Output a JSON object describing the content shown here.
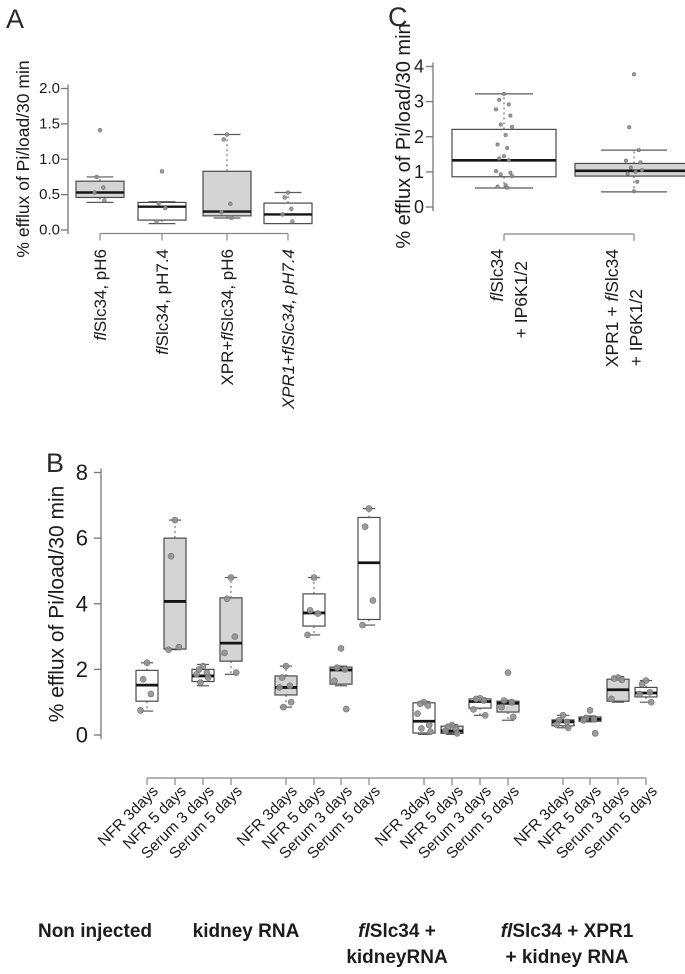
{
  "colors": {
    "box_gray": "#d4d4d4",
    "box_white": "#ffffff",
    "box_border": "#4a4a4a",
    "median": "#141414",
    "whisker": "#5a5a5a",
    "point": "#919191",
    "text": "#1c1c1c"
  },
  "chart_data": [
    {
      "panel": "A",
      "type": "boxplot",
      "ylabel": "% efflux of Pi/load/30 min",
      "ylim": [
        0,
        2
      ],
      "ytick_values": [
        0,
        0.5,
        1,
        1.5,
        2
      ],
      "ytick_labels": [
        "0.0",
        "0.5",
        "1.0",
        "1.5",
        "2.0"
      ],
      "boxes": [
        {
          "label": "flSlc34, pH6",
          "label_parts": [
            [
              "fl",
              1
            ],
            [
              "Slc34, pH6",
              0
            ]
          ],
          "fill": "gray",
          "q1": 0.46,
          "median": 0.53,
          "q3": 0.69,
          "whisker_low": 0.39,
          "whisker_high": 0.75,
          "points": [
            1.41,
            0.75,
            0.6,
            0.53,
            0.42
          ]
        },
        {
          "label": "flSlc34, pH7.4",
          "label_parts": [
            [
              "fl",
              1
            ],
            [
              "Slc34, pH7.4",
              0
            ]
          ],
          "fill": "white",
          "q1": 0.14,
          "median": 0.33,
          "q3": 0.39,
          "whisker_low": 0.09,
          "whisker_high": 0.4,
          "points": [
            0.83,
            0.38,
            0.31,
            0.12
          ]
        },
        {
          "label": "XPR+flSlc34, pH6",
          "label_parts": [
            [
              "XPR+",
              0
            ],
            [
              "fl",
              1
            ],
            [
              "Slc34, pH6",
              0
            ]
          ],
          "fill": "gray",
          "q1": 0.2,
          "median": 0.26,
          "q3": 0.83,
          "whisker_low": 0.17,
          "whisker_high": 1.35,
          "points": [
            1.35,
            1.28,
            0.37,
            0.25,
            0.17
          ]
        },
        {
          "label": "XPR1+flSlc34, pH7.4",
          "label_parts": [
            [
              "XPR1+flSlc34, pH7.4",
              1
            ]
          ],
          "fill": "white",
          "q1": 0.09,
          "median": 0.22,
          "q3": 0.38,
          "whisker_low": 0.09,
          "whisker_high": 0.53,
          "points": [
            0.53,
            0.46,
            0.3,
            0.22,
            0.12
          ]
        }
      ]
    },
    {
      "panel": "C",
      "type": "boxplot",
      "ylabel": "% efflux of Pi/load/30 min",
      "ylim": [
        0,
        4
      ],
      "ytick_values": [
        0,
        1,
        2,
        3,
        4
      ],
      "ytick_labels": [
        "0",
        "1",
        "2",
        "3",
        "4"
      ],
      "boxes": [
        {
          "label": "flSlc34 + IP6K1/2",
          "label_lines": [
            [
              [
                "fl",
                1
              ],
              [
                "Slc34",
                0
              ]
            ],
            [
              [
                "+ IP6K1/2",
                0
              ]
            ]
          ],
          "fill": "white",
          "q1": 0.86,
          "median": 1.33,
          "q3": 2.21,
          "whisker_low": 0.54,
          "whisker_high": 3.22,
          "points": [
            3.22,
            3.05,
            2.92,
            2.78,
            2.6,
            2.35,
            2.28,
            2.05,
            1.78,
            1.68,
            1.45,
            1.38,
            1.33,
            1.02,
            0.97,
            0.93,
            0.88,
            0.62,
            0.58,
            0.55
          ]
        },
        {
          "label": "XPR1 + flSlc34 + IP6K1/2",
          "label_lines": [
            [
              [
                "XPR1 + ",
                0
              ],
              [
                "fl",
                1
              ],
              [
                "Slc34",
                0
              ]
            ],
            [
              [
                "+ IP6K1/2",
                0
              ]
            ]
          ],
          "fill": "gray",
          "q1": 0.88,
          "median": 1.03,
          "q3": 1.24,
          "whisker_low": 0.43,
          "whisker_high": 1.62,
          "points": [
            3.78,
            2.27,
            1.62,
            1.32,
            1.27,
            1.12,
            1.05,
            1.0,
            0.95,
            0.72,
            0.45
          ]
        }
      ]
    },
    {
      "panel": "B",
      "type": "boxplot",
      "ylabel": "% efflux of Pi/load/30 min",
      "ylim": [
        0,
        8
      ],
      "ytick_values": [
        0,
        2,
        4,
        6,
        8
      ],
      "ytick_labels": [
        "0",
        "2",
        "4",
        "6",
        "8"
      ],
      "boxes": [
        {
          "label": "NFR 3days",
          "fill": "white",
          "q1": 1.03,
          "median": 1.52,
          "q3": 1.97,
          "whisker_low": 0.73,
          "whisker_high": 2.2,
          "points": [
            2.2,
            1.7,
            1.25,
            0.75
          ]
        },
        {
          "label": "NFR 5 days",
          "fill": "gray",
          "q1": 2.62,
          "median": 4.07,
          "q3": 6.0,
          "whisker_low": 2.6,
          "whisker_high": 6.55,
          "points": [
            6.55,
            5.45,
            2.68,
            2.6
          ]
        },
        {
          "label": "Serum 3 days",
          "fill": "white",
          "q1": 1.63,
          "median": 1.8,
          "q3": 2.0,
          "whisker_low": 1.5,
          "whisker_high": 2.15,
          "points": [
            2.1,
            2.0,
            1.9,
            1.85,
            1.75,
            1.6
          ]
        },
        {
          "label": "Serum 5 days",
          "fill": "gray",
          "q1": 2.25,
          "median": 2.8,
          "q3": 4.18,
          "whisker_low": 1.85,
          "whisker_high": 4.8,
          "points": [
            4.8,
            4.15,
            3.0,
            2.5,
            1.9
          ]
        },
        {
          "label": "NFR 3days",
          "fill": "gray",
          "q1": 1.22,
          "median": 1.45,
          "q3": 1.8,
          "whisker_low": 0.85,
          "whisker_high": 2.1,
          "points": [
            2.1,
            1.75,
            1.5,
            1.45,
            1.0,
            0.85
          ]
        },
        {
          "label": "NFR 5 days",
          "fill": "white",
          "q1": 3.32,
          "median": 3.72,
          "q3": 4.3,
          "whisker_low": 3.05,
          "whisker_high": 4.8,
          "points": [
            4.8,
            3.8,
            3.7,
            3.05
          ]
        },
        {
          "label": "Serum 3 days",
          "fill": "gray",
          "q1": 1.55,
          "median": 1.98,
          "q3": 2.07,
          "whisker_low": 1.5,
          "whisker_high": 2.1,
          "points": [
            2.64,
            2.05,
            2.0,
            1.65,
            0.79
          ]
        },
        {
          "label": "Serum 5 days",
          "fill": "white",
          "q1": 3.52,
          "median": 5.25,
          "q3": 6.63,
          "whisker_low": 3.35,
          "whisker_high": 6.9,
          "points": [
            6.9,
            6.35,
            4.1,
            3.35
          ]
        },
        {
          "label": "NFR 3days",
          "fill": "white",
          "q1": 0.06,
          "median": 0.42,
          "q3": 0.98,
          "whisker_low": 0.02,
          "whisker_high": 1.02,
          "points": [
            1.0,
            0.95,
            0.9,
            0.65,
            0.3,
            0.2,
            0.1
          ]
        },
        {
          "label": "NFR 5 days",
          "fill": "gray",
          "q1": 0.05,
          "median": 0.12,
          "q3": 0.27,
          "whisker_low": 0.02,
          "whisker_high": 0.32,
          "points": [
            0.3,
            0.25,
            0.18,
            0.12,
            0.05
          ]
        },
        {
          "label": "Serum 3 days",
          "fill": "white",
          "q1": 0.82,
          "median": 1.02,
          "q3": 1.1,
          "whisker_low": 0.6,
          "whisker_high": 1.13,
          "points": [
            1.12,
            1.1,
            1.05,
            0.78,
            0.6
          ]
        },
        {
          "label": "Serum 5 days",
          "fill": "gray",
          "q1": 0.7,
          "median": 0.97,
          "q3": 1.03,
          "whisker_low": 0.45,
          "whisker_high": 1.06,
          "points": [
            1.9,
            1.05,
            1.0,
            0.85,
            0.55
          ]
        },
        {
          "label": "NFR 3days",
          "fill": "white",
          "q1": 0.28,
          "median": 0.4,
          "q3": 0.46,
          "whisker_low": 0.22,
          "whisker_high": 0.6,
          "points": [
            0.6,
            0.45,
            0.4,
            0.32,
            0.22
          ]
        },
        {
          "label": "NFR 5 days",
          "fill": "gray",
          "q1": 0.42,
          "median": 0.48,
          "q3": 0.55,
          "whisker_low": 0.4,
          "whisker_high": 0.58,
          "points": [
            0.75,
            0.52,
            0.48,
            0.45,
            0.05
          ]
        },
        {
          "label": "Serum 3 days",
          "fill": "gray",
          "q1": 1.03,
          "median": 1.38,
          "q3": 1.7,
          "whisker_low": 1.0,
          "whisker_high": 1.78,
          "points": [
            1.75,
            1.72,
            1.68,
            1.1
          ]
        },
        {
          "label": "Serum 5 days",
          "fill": "white",
          "q1": 1.16,
          "median": 1.28,
          "q3": 1.45,
          "whisker_low": 1.0,
          "whisker_high": 1.66,
          "points": [
            1.66,
            1.55,
            1.3,
            1.25,
            1.0
          ]
        }
      ],
      "groups": [
        {
          "label": "Non injected",
          "lines": [
            [
              [
                "Non injected",
                0
              ]
            ]
          ]
        },
        {
          "label": "kidney RNA",
          "lines": [
            [
              [
                "kidney RNA",
                0
              ]
            ]
          ]
        },
        {
          "label": "flSlc34 + kidneyRNA",
          "lines": [
            [
              [
                "fl",
                1
              ],
              [
                "Slc34 +",
                0
              ]
            ],
            [
              [
                "kidneyRNA",
                0
              ]
            ]
          ]
        },
        {
          "label": "flSlc34 + XPR1 + kidney RNA",
          "lines": [
            [
              [
                "fl",
                1
              ],
              [
                "Slc34 + XPR1",
                0
              ]
            ],
            [
              [
                "+ kidney RNA",
                0
              ]
            ]
          ]
        }
      ]
    }
  ]
}
